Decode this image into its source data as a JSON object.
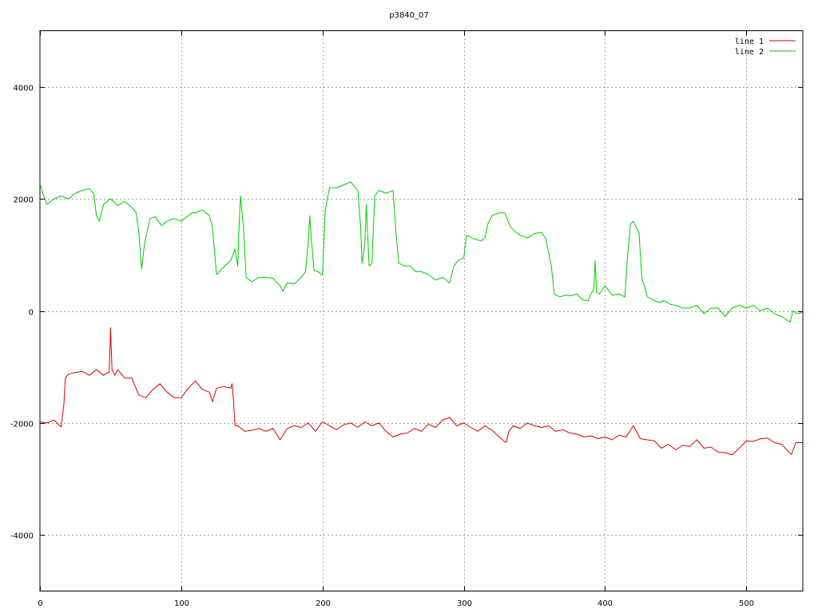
{
  "chart_data": {
    "type": "line",
    "title": "p3840_07",
    "xlabel": "",
    "ylabel": "",
    "xlim": [
      0,
      540
    ],
    "ylim": [
      -5000,
      5000
    ],
    "x_ticks": [
      0,
      100,
      200,
      300,
      400,
      500
    ],
    "y_ticks": [
      -4000,
      -2000,
      0,
      2000,
      4000
    ],
    "x_tick_labels": [
      "0",
      "100",
      "200",
      "300",
      "400",
      "500"
    ],
    "y_tick_labels": [
      "-4000",
      "-2000",
      "0",
      "2000",
      "4000"
    ],
    "grid": true,
    "legend_position": "top-right",
    "series": [
      {
        "name": "line 1",
        "color": "#dd0000",
        "points": [
          [
            0,
            -1980
          ],
          [
            5,
            -2000
          ],
          [
            10,
            -1950
          ],
          [
            15,
            -2070
          ],
          [
            17,
            -1650
          ],
          [
            18,
            -1200
          ],
          [
            20,
            -1130
          ],
          [
            25,
            -1100
          ],
          [
            30,
            -1080
          ],
          [
            35,
            -1150
          ],
          [
            40,
            -1050
          ],
          [
            45,
            -1150
          ],
          [
            48,
            -1100
          ],
          [
            49,
            -1100
          ],
          [
            50,
            -300
          ],
          [
            51,
            -1050
          ],
          [
            53,
            -1150
          ],
          [
            55,
            -1050
          ],
          [
            60,
            -1200
          ],
          [
            65,
            -1200
          ],
          [
            70,
            -1500
          ],
          [
            75,
            -1550
          ],
          [
            80,
            -1400
          ],
          [
            85,
            -1300
          ],
          [
            90,
            -1450
          ],
          [
            95,
            -1550
          ],
          [
            100,
            -1550
          ],
          [
            105,
            -1380
          ],
          [
            110,
            -1250
          ],
          [
            115,
            -1400
          ],
          [
            120,
            -1450
          ],
          [
            122,
            -1620
          ],
          [
            125,
            -1380
          ],
          [
            130,
            -1350
          ],
          [
            135,
            -1380
          ],
          [
            136,
            -1300
          ],
          [
            137,
            -1600
          ],
          [
            138,
            -2050
          ],
          [
            140,
            -2050
          ],
          [
            145,
            -2150
          ],
          [
            150,
            -2130
          ],
          [
            155,
            -2100
          ],
          [
            160,
            -2150
          ],
          [
            165,
            -2100
          ],
          [
            170,
            -2300
          ],
          [
            175,
            -2100
          ],
          [
            180,
            -2050
          ],
          [
            185,
            -2080
          ],
          [
            190,
            -2000
          ],
          [
            195,
            -2150
          ],
          [
            200,
            -1980
          ],
          [
            205,
            -2050
          ],
          [
            210,
            -2120
          ],
          [
            215,
            -2030
          ],
          [
            220,
            -2000
          ],
          [
            225,
            -2080
          ],
          [
            230,
            -1980
          ],
          [
            235,
            -2050
          ],
          [
            240,
            -2000
          ],
          [
            245,
            -2150
          ],
          [
            250,
            -2250
          ],
          [
            255,
            -2200
          ],
          [
            260,
            -2180
          ],
          [
            265,
            -2100
          ],
          [
            270,
            -2150
          ],
          [
            275,
            -2020
          ],
          [
            280,
            -2080
          ],
          [
            285,
            -1950
          ],
          [
            290,
            -1900
          ],
          [
            295,
            -2050
          ],
          [
            300,
            -2000
          ],
          [
            305,
            -2080
          ],
          [
            310,
            -2150
          ],
          [
            315,
            -2050
          ],
          [
            320,
            -2130
          ],
          [
            325,
            -2250
          ],
          [
            330,
            -2350
          ],
          [
            332,
            -2150
          ],
          [
            335,
            -2050
          ],
          [
            340,
            -2100
          ],
          [
            345,
            -2000
          ],
          [
            350,
            -2050
          ],
          [
            355,
            -2080
          ],
          [
            360,
            -2050
          ],
          [
            365,
            -2150
          ],
          [
            370,
            -2120
          ],
          [
            375,
            -2180
          ],
          [
            380,
            -2200
          ],
          [
            385,
            -2250
          ],
          [
            390,
            -2230
          ],
          [
            395,
            -2280
          ],
          [
            400,
            -2250
          ],
          [
            405,
            -2300
          ],
          [
            410,
            -2220
          ],
          [
            415,
            -2250
          ],
          [
            420,
            -2050
          ],
          [
            425,
            -2280
          ],
          [
            430,
            -2300
          ],
          [
            435,
            -2320
          ],
          [
            440,
            -2450
          ],
          [
            445,
            -2380
          ],
          [
            450,
            -2480
          ],
          [
            455,
            -2400
          ],
          [
            460,
            -2420
          ],
          [
            465,
            -2300
          ],
          [
            470,
            -2450
          ],
          [
            475,
            -2430
          ],
          [
            480,
            -2520
          ],
          [
            485,
            -2530
          ],
          [
            490,
            -2570
          ],
          [
            495,
            -2450
          ],
          [
            500,
            -2320
          ],
          [
            505,
            -2330
          ],
          [
            510,
            -2280
          ],
          [
            515,
            -2270
          ],
          [
            520,
            -2350
          ],
          [
            525,
            -2380
          ],
          [
            530,
            -2520
          ],
          [
            532,
            -2560
          ],
          [
            535,
            -2350
          ],
          [
            540,
            -2350
          ]
        ]
      },
      {
        "name": "line 2",
        "color": "#00cc00",
        "points": [
          [
            0,
            2280
          ],
          [
            2,
            2100
          ],
          [
            5,
            1900
          ],
          [
            10,
            2000
          ],
          [
            15,
            2050
          ],
          [
            20,
            2000
          ],
          [
            25,
            2100
          ],
          [
            30,
            2150
          ],
          [
            35,
            2180
          ],
          [
            38,
            2100
          ],
          [
            40,
            1700
          ],
          [
            42,
            1600
          ],
          [
            45,
            1900
          ],
          [
            50,
            2000
          ],
          [
            55,
            1880
          ],
          [
            60,
            1950
          ],
          [
            65,
            1850
          ],
          [
            68,
            1750
          ],
          [
            70,
            1400
          ],
          [
            72,
            750
          ],
          [
            74,
            1200
          ],
          [
            78,
            1650
          ],
          [
            82,
            1680
          ],
          [
            86,
            1520
          ],
          [
            90,
            1600
          ],
          [
            95,
            1650
          ],
          [
            100,
            1600
          ],
          [
            105,
            1700
          ],
          [
            108,
            1750
          ],
          [
            110,
            1750
          ],
          [
            115,
            1800
          ],
          [
            120,
            1700
          ],
          [
            122,
            1500
          ],
          [
            125,
            650
          ],
          [
            130,
            780
          ],
          [
            135,
            900
          ],
          [
            138,
            1100
          ],
          [
            140,
            800
          ],
          [
            141,
            1550
          ],
          [
            142,
            2050
          ],
          [
            144,
            1500
          ],
          [
            146,
            600
          ],
          [
            150,
            520
          ],
          [
            155,
            600
          ],
          [
            160,
            600
          ],
          [
            165,
            580
          ],
          [
            170,
            450
          ],
          [
            172,
            350
          ],
          [
            175,
            500
          ],
          [
            180,
            480
          ],
          [
            185,
            600
          ],
          [
            188,
            700
          ],
          [
            190,
            1250
          ],
          [
            191,
            1700
          ],
          [
            192,
            1300
          ],
          [
            194,
            720
          ],
          [
            197,
            700
          ],
          [
            199,
            650
          ],
          [
            200,
            650
          ],
          [
            202,
            1800
          ],
          [
            205,
            2200
          ],
          [
            210,
            2200
          ],
          [
            215,
            2250
          ],
          [
            220,
            2300
          ],
          [
            225,
            2150
          ],
          [
            227,
            1500
          ],
          [
            228,
            850
          ],
          [
            230,
            1200
          ],
          [
            231,
            1900
          ],
          [
            233,
            800
          ],
          [
            235,
            850
          ],
          [
            237,
            2050
          ],
          [
            240,
            2150
          ],
          [
            245,
            2100
          ],
          [
            250,
            2150
          ],
          [
            252,
            1400
          ],
          [
            254,
            850
          ],
          [
            258,
            800
          ],
          [
            262,
            800
          ],
          [
            266,
            700
          ],
          [
            270,
            700
          ],
          [
            275,
            650
          ],
          [
            280,
            550
          ],
          [
            285,
            600
          ],
          [
            290,
            500
          ],
          [
            293,
            800
          ],
          [
            296,
            900
          ],
          [
            300,
            950
          ],
          [
            302,
            1350
          ],
          [
            306,
            1300
          ],
          [
            312,
            1250
          ],
          [
            315,
            1300
          ],
          [
            317,
            1550
          ],
          [
            320,
            1700
          ],
          [
            325,
            1750
          ],
          [
            329,
            1750
          ],
          [
            333,
            1500
          ],
          [
            337,
            1400
          ],
          [
            340,
            1350
          ],
          [
            345,
            1300
          ],
          [
            350,
            1380
          ],
          [
            355,
            1400
          ],
          [
            358,
            1300
          ],
          [
            362,
            800
          ],
          [
            364,
            300
          ],
          [
            368,
            250
          ],
          [
            372,
            280
          ],
          [
            376,
            270
          ],
          [
            380,
            300
          ],
          [
            384,
            200
          ],
          [
            388,
            180
          ],
          [
            390,
            300
          ],
          [
            392,
            380
          ],
          [
            393,
            900
          ],
          [
            394,
            330
          ],
          [
            396,
            300
          ],
          [
            400,
            450
          ],
          [
            405,
            280
          ],
          [
            410,
            300
          ],
          [
            414,
            250
          ],
          [
            416,
            1000
          ],
          [
            418,
            1550
          ],
          [
            420,
            1600
          ],
          [
            424,
            1400
          ],
          [
            426,
            600
          ],
          [
            430,
            250
          ],
          [
            434,
            200
          ],
          [
            438,
            150
          ],
          [
            442,
            180
          ],
          [
            446,
            120
          ],
          [
            450,
            100
          ],
          [
            455,
            50
          ],
          [
            460,
            50
          ],
          [
            465,
            100
          ],
          [
            470,
            -50
          ],
          [
            475,
            50
          ],
          [
            480,
            50
          ],
          [
            485,
            -100
          ],
          [
            490,
            50
          ],
          [
            495,
            100
          ],
          [
            500,
            50
          ],
          [
            505,
            100
          ],
          [
            510,
            0
          ],
          [
            515,
            50
          ],
          [
            520,
            -50
          ],
          [
            525,
            -100
          ],
          [
            528,
            -150
          ],
          [
            531,
            -200
          ],
          [
            533,
            0
          ],
          [
            536,
            -50
          ],
          [
            540,
            -30
          ]
        ]
      }
    ]
  }
}
